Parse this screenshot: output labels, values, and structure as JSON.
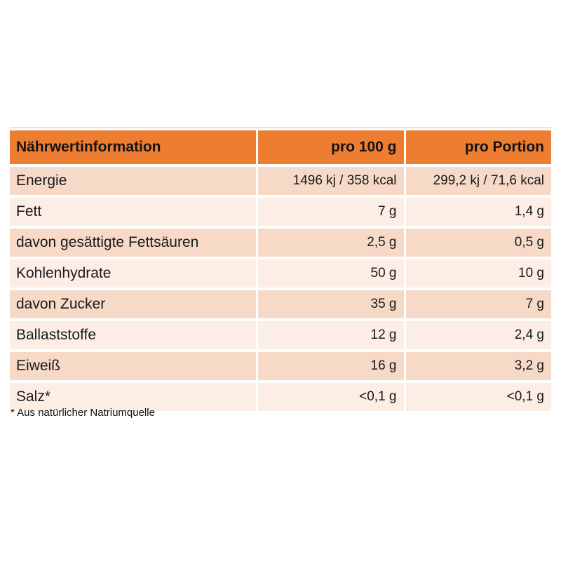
{
  "table": {
    "header": {
      "col1": "Nährwertinformation",
      "col2": "pro 100 g",
      "col3": "pro Portion"
    },
    "rows": [
      {
        "label": "Energie",
        "per_100g": "1496 kj / 358 kcal",
        "per_portion": "299,2 kj / 71,6 kcal"
      },
      {
        "label": "Fett",
        "per_100g": "7 g",
        "per_portion": "1,4 g"
      },
      {
        "label": "davon gesättigte Fettsäuren",
        "per_100g": "2,5 g",
        "per_portion": "0,5 g"
      },
      {
        "label": "Kohlenhydrate",
        "per_100g": "50 g",
        "per_portion": "10 g"
      },
      {
        "label": "davon Zucker",
        "per_100g": "35 g",
        "per_portion": "7 g"
      },
      {
        "label": "Ballaststoffe",
        "per_100g": "12 g",
        "per_portion": "2,4 g"
      },
      {
        "label": "Eiweiß",
        "per_100g": "16 g",
        "per_portion": "3,2 g"
      },
      {
        "label": "Salz*",
        "per_100g": "<0,1 g",
        "per_portion": "<0,1 g"
      }
    ],
    "footnote": "* Aus natürlicher Natriumquelle"
  },
  "colors": {
    "header_bg": "#ED7D31",
    "band_dark": "#F7D9C7",
    "band_light": "#FCEDE5"
  }
}
